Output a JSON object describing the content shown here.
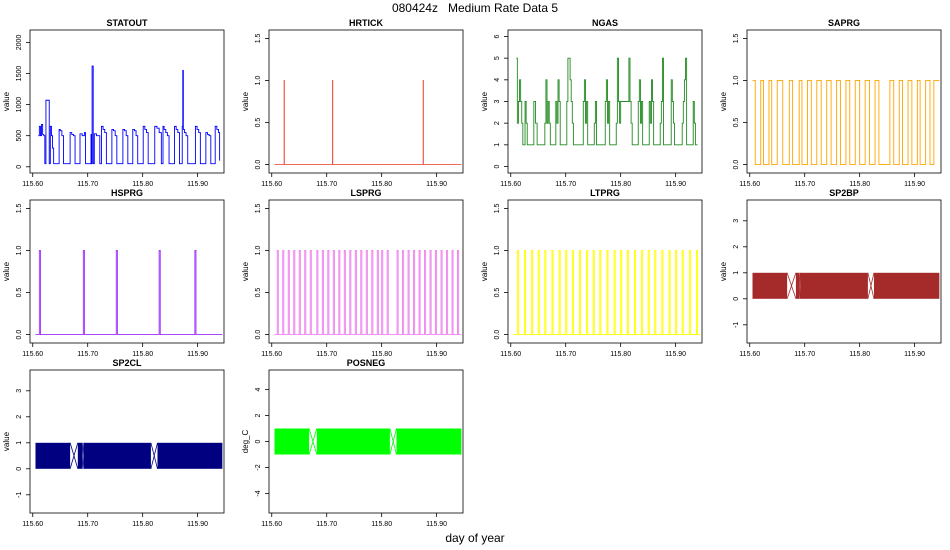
{
  "figure": {
    "title": "080424z   Medium Rate Data 5",
    "xlabel": "day of year"
  },
  "chart_data": [
    {
      "type": "line",
      "title": "STATOUT",
      "ylabel": "value",
      "color": "#0000ff",
      "style": "step",
      "xlim": [
        115.595,
        115.948
      ],
      "ylim": [
        -100,
        2200
      ],
      "yticks": [
        0,
        500,
        1000,
        1500,
        2000
      ],
      "ytick_labels": [
        "0",
        "500",
        "1000",
        "1500",
        "2000"
      ],
      "xticks": [
        115.6,
        115.7,
        115.8,
        115.9
      ],
      "xtick_labels": [
        "115.60",
        "115.70",
        "115.80",
        "115.90"
      ],
      "series": [
        {
          "x": [
            115.61,
            115.612,
            115.614,
            115.616,
            115.618,
            115.62,
            115.622,
            115.624,
            115.63,
            115.632,
            115.634,
            115.636,
            115.638,
            115.64,
            115.648,
            115.65,
            115.653,
            115.656,
            115.659,
            115.665,
            115.668,
            115.671,
            115.674,
            115.677,
            115.684,
            115.686,
            115.69,
            115.694,
            115.696,
            115.704,
            115.706,
            115.707,
            115.708,
            115.71,
            115.712,
            115.716,
            115.722,
            115.725,
            115.728,
            115.731,
            115.734,
            115.741,
            115.744,
            115.747,
            115.75,
            115.753,
            115.761,
            115.764,
            115.767,
            115.77,
            115.773,
            115.779,
            115.782,
            115.785,
            115.788,
            115.791,
            115.798,
            115.801,
            115.804,
            115.807,
            115.81,
            115.818,
            115.822,
            115.826,
            115.83,
            115.834,
            115.837,
            115.839,
            115.842,
            115.845,
            115.848,
            115.855,
            115.858,
            115.861,
            115.864,
            115.867,
            115.871,
            115.872,
            115.873,
            115.874,
            115.876,
            115.879,
            115.882,
            115.885,
            115.893,
            115.896,
            115.899,
            115.902,
            115.905,
            115.912,
            115.915,
            115.918,
            115.921,
            115.924,
            115.93,
            115.932,
            115.935,
            115.938,
            115.94
          ],
          "y": [
            500,
            650,
            500,
            680,
            520,
            500,
            50,
            1070,
            50,
            650,
            500,
            300,
            50,
            50,
            600,
            580,
            500,
            50,
            50,
            50,
            550,
            520,
            500,
            50,
            50,
            530,
            500,
            550,
            50,
            50,
            520,
            50,
            1620,
            50,
            530,
            500,
            50,
            650,
            600,
            550,
            50,
            50,
            600,
            580,
            500,
            50,
            50,
            600,
            580,
            500,
            50,
            50,
            600,
            580,
            500,
            50,
            50,
            650,
            600,
            550,
            50,
            50,
            650,
            620,
            550,
            50,
            650,
            600,
            550,
            500,
            50,
            50,
            650,
            600,
            550,
            50,
            50,
            650,
            1550,
            600,
            550,
            500,
            50,
            50,
            50,
            650,
            600,
            550,
            50,
            50,
            550,
            520,
            500,
            50,
            50,
            650,
            600,
            550,
            100
          ]
        }
      ]
    },
    {
      "type": "line",
      "title": "HRTICK",
      "ylabel": "value",
      "color": "#ee5544",
      "style": "step",
      "xlim": [
        115.595,
        115.948
      ],
      "ylim": [
        -0.1,
        1.6
      ],
      "yticks": [
        0,
        0.5,
        1,
        1.5
      ],
      "ytick_labels": [
        "0.0",
        "0.5",
        "1.0",
        "1.5"
      ],
      "xticks": [
        115.6,
        115.7,
        115.8,
        115.9
      ],
      "xtick_labels": [
        "115.60",
        "115.70",
        "115.80",
        "115.90"
      ],
      "series": [
        {
          "x": [
            115.605,
            115.622,
            115.6225,
            115.623,
            115.71,
            115.7105,
            115.711,
            115.875,
            115.8755,
            115.876,
            115.945
          ],
          "y": [
            0,
            0,
            1,
            0,
            0,
            1,
            0,
            0,
            1,
            0,
            0
          ]
        }
      ]
    },
    {
      "type": "line",
      "title": "NGAS",
      "ylabel": "value",
      "color": "#228b22",
      "style": "step",
      "xlim": [
        115.595,
        115.948
      ],
      "ylim": [
        -0.3,
        6.3
      ],
      "yticks": [
        0,
        1,
        2,
        3,
        4,
        5,
        6
      ],
      "ytick_labels": [
        "0",
        "1",
        "2",
        "3",
        "4",
        "5",
        "6"
      ],
      "xticks": [
        115.6,
        115.7,
        115.8,
        115.9
      ],
      "xtick_labels": [
        "115.60",
        "115.70",
        "115.80",
        "115.90"
      ],
      "series": [
        {
          "x": [
            115.61,
            115.612,
            115.614,
            115.616,
            115.618,
            115.62,
            115.622,
            115.624,
            115.626,
            115.628,
            115.63,
            115.64,
            115.642,
            115.645,
            115.648,
            115.66,
            115.662,
            115.664,
            115.666,
            115.668,
            115.67,
            115.672,
            115.68,
            115.682,
            115.684,
            115.686,
            115.688,
            115.69,
            115.7,
            115.702,
            115.704,
            115.708,
            115.71,
            115.712,
            115.714,
            115.716,
            115.72,
            115.73,
            115.732,
            115.734,
            115.736,
            115.738,
            115.74,
            115.75,
            115.752,
            115.754,
            115.756,
            115.76,
            115.77,
            115.772,
            115.774,
            115.776,
            115.778,
            115.78,
            115.79,
            115.792,
            115.794,
            115.796,
            115.798,
            115.8,
            115.805,
            115.815,
            115.817,
            115.819,
            115.821,
            115.823,
            115.83,
            115.832,
            115.834,
            115.836,
            115.838,
            115.84,
            115.85,
            115.852,
            115.854,
            115.856,
            115.858,
            115.86,
            115.87,
            115.872,
            115.874,
            115.876,
            115.878,
            115.89,
            115.892,
            115.894,
            115.896,
            115.898,
            115.91,
            115.912,
            115.914,
            115.916,
            115.918,
            115.92,
            115.93,
            115.932,
            115.934,
            115.936,
            115.94
          ],
          "y": [
            5,
            2,
            3,
            4,
            3,
            2,
            1,
            1,
            3,
            2,
            1,
            1,
            3,
            2,
            1,
            1,
            2,
            4,
            2,
            3,
            2,
            1,
            1,
            3,
            2,
            4,
            3,
            1,
            1,
            3,
            5,
            4,
            3,
            2,
            1,
            1,
            1,
            1,
            3,
            4,
            2,
            3,
            1,
            1,
            2,
            3,
            1,
            1,
            1,
            3,
            4,
            2,
            3,
            1,
            1,
            2,
            5,
            3,
            2,
            3,
            3,
            5,
            3,
            2,
            1,
            1,
            1,
            3,
            4,
            2,
            3,
            1,
            1,
            3,
            2,
            4,
            3,
            1,
            1,
            2,
            3,
            5,
            1,
            1,
            4,
            3,
            2,
            1,
            1,
            2,
            3,
            4,
            5,
            1,
            1,
            3,
            2,
            1,
            1
          ]
        }
      ]
    },
    {
      "type": "line",
      "title": "SAPRG",
      "ylabel": "value",
      "color": "#ffa500",
      "style": "pulse",
      "pulse_low": 0,
      "pulse_high": 1,
      "xlim": [
        115.595,
        115.948
      ],
      "ylim": [
        -0.1,
        1.6
      ],
      "yticks": [
        0,
        0.5,
        1,
        1.5
      ],
      "ytick_labels": [
        "0.0",
        "0.5",
        "1.0",
        "1.5"
      ],
      "xticks": [
        115.6,
        115.7,
        115.8,
        115.9
      ],
      "xtick_labels": [
        "115.60",
        "115.70",
        "115.80",
        "115.90"
      ],
      "x_start": 115.605,
      "x_end": 115.945,
      "start_level": 1,
      "toggles": [
        115.61,
        115.62,
        115.625,
        115.635,
        115.64,
        115.65,
        115.66,
        115.672,
        115.678,
        115.69,
        115.695,
        115.705,
        115.712,
        115.722,
        115.73,
        115.74,
        115.748,
        115.758,
        115.765,
        115.775,
        115.782,
        115.792,
        115.8,
        115.81,
        115.818,
        115.828,
        115.835,
        115.855,
        115.862,
        115.872,
        115.878,
        115.888,
        115.895,
        115.905,
        115.91,
        115.92,
        115.928,
        115.935
      ]
    },
    {
      "type": "line",
      "title": "HSPRG",
      "ylabel": "value",
      "color": "#9b30ff",
      "style": "pulse",
      "pulse_low": 0,
      "pulse_high": 1,
      "xlim": [
        115.595,
        115.948
      ],
      "ylim": [
        -0.1,
        1.6
      ],
      "yticks": [
        0,
        0.5,
        1,
        1.5
      ],
      "ytick_labels": [
        "0.0",
        "0.5",
        "1.0",
        "1.5"
      ],
      "xticks": [
        115.6,
        115.7,
        115.8,
        115.9
      ],
      "xtick_labels": [
        "115.60",
        "115.70",
        "115.80",
        "115.90"
      ],
      "x_start": 115.605,
      "x_end": 115.945,
      "start_level": 0,
      "toggles": [
        115.612,
        115.614,
        115.692,
        115.694,
        115.752,
        115.754,
        115.83,
        115.832,
        115.895,
        115.897
      ]
    },
    {
      "type": "line",
      "title": "LSPRG",
      "ylabel": "value",
      "color": "#ee82ee",
      "style": "pulse",
      "pulse_low": 0,
      "pulse_high": 1,
      "xlim": [
        115.595,
        115.948
      ],
      "ylim": [
        -0.1,
        1.6
      ],
      "yticks": [
        0,
        0.5,
        1,
        1.5
      ],
      "ytick_labels": [
        "0.0",
        "0.5",
        "1.0",
        "1.5"
      ],
      "xticks": [
        115.6,
        115.7,
        115.8,
        115.9
      ],
      "xtick_labels": [
        "115.60",
        "115.70",
        "115.80",
        "115.90"
      ],
      "x_start": 115.605,
      "x_end": 115.945,
      "start_level": 0,
      "toggles": [
        115.61,
        115.612,
        115.62,
        115.622,
        115.63,
        115.632,
        115.64,
        115.642,
        115.65,
        115.652,
        115.66,
        115.662,
        115.67,
        115.672,
        115.682,
        115.684,
        115.692,
        115.694,
        115.702,
        115.704,
        115.712,
        115.714,
        115.722,
        115.724,
        115.732,
        115.734,
        115.742,
        115.744,
        115.752,
        115.754,
        115.762,
        115.764,
        115.772,
        115.774,
        115.782,
        115.784,
        115.792,
        115.794,
        115.8,
        115.802,
        115.81,
        115.812,
        115.828,
        115.83,
        115.838,
        115.84,
        115.848,
        115.85,
        115.858,
        115.86,
        115.868,
        115.87,
        115.878,
        115.88,
        115.888,
        115.89,
        115.898,
        115.9,
        115.908,
        115.91,
        115.918,
        115.92,
        115.928,
        115.93,
        115.938,
        115.94
      ]
    },
    {
      "type": "line",
      "title": "LTPRG",
      "ylabel": "value",
      "color": "#ffff00",
      "style": "pulse",
      "pulse_low": 0,
      "pulse_high": 1,
      "xlim": [
        115.595,
        115.948
      ],
      "ylim": [
        -0.1,
        1.6
      ],
      "yticks": [
        0,
        0.5,
        1,
        1.5
      ],
      "ytick_labels": [
        "0.0",
        "0.5",
        "1.0",
        "1.5"
      ],
      "xticks": [
        115.6,
        115.7,
        115.8,
        115.9
      ],
      "xtick_labels": [
        "115.60",
        "115.70",
        "115.80",
        "115.90"
      ],
      "x_start": 115.605,
      "x_end": 115.945,
      "start_level": 0,
      "toggles": [
        115.612,
        115.614,
        115.625,
        115.627,
        115.638,
        115.64,
        115.65,
        115.652,
        115.662,
        115.664,
        115.675,
        115.677,
        115.688,
        115.69,
        115.7,
        115.702,
        115.712,
        115.714,
        115.725,
        115.727,
        115.738,
        115.74,
        115.75,
        115.752,
        115.762,
        115.764,
        115.775,
        115.777,
        115.788,
        115.79,
        115.8,
        115.802,
        115.812,
        115.814,
        115.825,
        115.827,
        115.838,
        115.84,
        115.85,
        115.852,
        115.862,
        115.864,
        115.875,
        115.877,
        115.888,
        115.89,
        115.9,
        115.902,
        115.912,
        115.914,
        115.925,
        115.927,
        115.938,
        115.94
      ]
    },
    {
      "type": "area",
      "title": "SP2BP",
      "ylabel": "value",
      "color": "#a52a2a",
      "style": "band",
      "band_low": 0,
      "band_high": 1,
      "xlim": [
        115.595,
        115.948
      ],
      "ylim": [
        -1.7,
        3.8
      ],
      "yticks": [
        -1,
        0,
        1,
        2,
        3
      ],
      "ytick_labels": [
        "-1",
        "0",
        "1",
        "2",
        "3"
      ],
      "xticks": [
        115.6,
        115.7,
        115.8,
        115.9
      ],
      "xtick_labels": [
        "115.60",
        "115.70",
        "115.80",
        "115.90"
      ],
      "bands": [
        [
          115.605,
          115.668
        ],
        [
          115.684,
          115.69
        ],
        [
          115.692,
          115.815
        ],
        [
          115.826,
          115.945
        ]
      ]
    },
    {
      "type": "area",
      "title": "SP2CL",
      "ylabel": "value",
      "color": "#000080",
      "style": "band",
      "band_low": 0,
      "band_high": 1,
      "xlim": [
        115.595,
        115.948
      ],
      "ylim": [
        -1.7,
        3.8
      ],
      "yticks": [
        -1,
        0,
        1,
        2,
        3
      ],
      "ytick_labels": [
        "-1",
        "0",
        "1",
        "2",
        "3"
      ],
      "xticks": [
        115.6,
        115.7,
        115.8,
        115.9
      ],
      "xtick_labels": [
        "115.60",
        "115.70",
        "115.80",
        "115.90"
      ],
      "bands": [
        [
          115.605,
          115.668
        ],
        [
          115.682,
          115.69
        ],
        [
          115.693,
          115.815
        ],
        [
          115.827,
          115.945
        ]
      ]
    },
    {
      "type": "area",
      "title": "POSNEG",
      "ylabel": "deg_C",
      "color": "#00ff00",
      "style": "band",
      "band_low": -1,
      "band_high": 1,
      "xlim": [
        115.595,
        115.948
      ],
      "ylim": [
        -5.5,
        5.5
      ],
      "yticks": [
        -4,
        -2,
        0,
        2,
        4
      ],
      "ytick_labels": [
        "-4",
        "-2",
        "0",
        "2",
        "4"
      ],
      "xticks": [
        115.6,
        115.7,
        115.8,
        115.9
      ],
      "xtick_labels": [
        "115.60",
        "115.70",
        "115.80",
        "115.90"
      ],
      "bands": [
        [
          115.605,
          115.668
        ],
        [
          115.682,
          115.815
        ],
        [
          115.827,
          115.945
        ]
      ]
    }
  ]
}
